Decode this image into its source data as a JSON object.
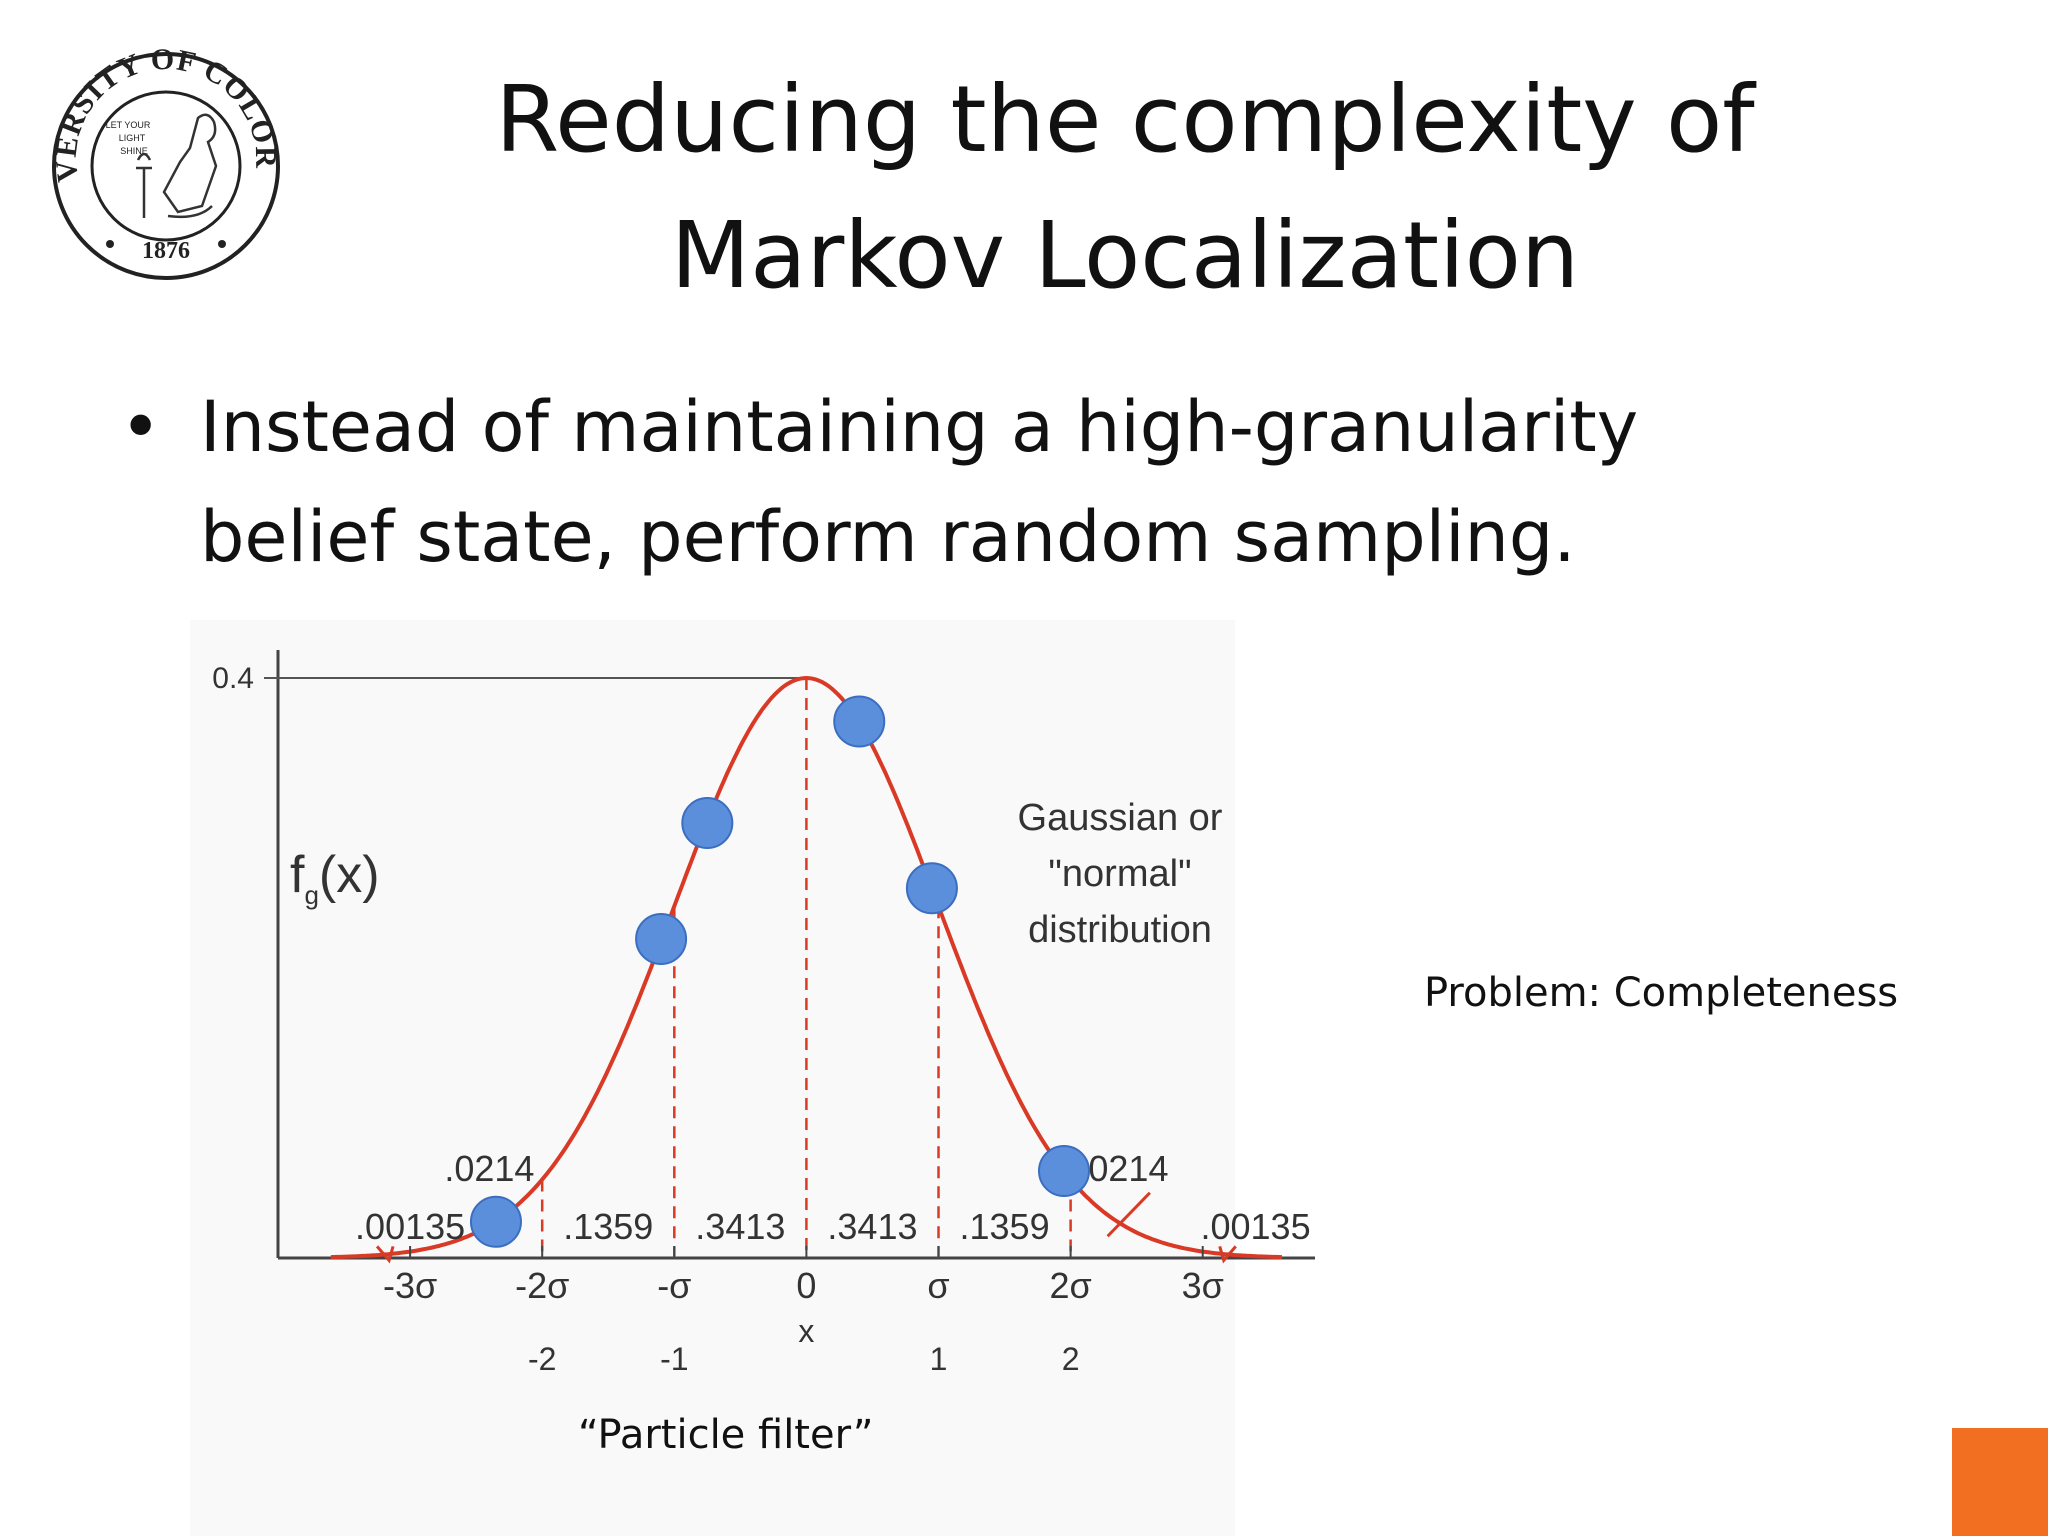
{
  "slide": {
    "title_lines": [
      "Reducing the complexity of",
      "Markov Localization"
    ],
    "bullet_marker": "•",
    "bullet_lines": [
      "Instead of maintaining a high-granularity",
      "belief state, perform random sampling."
    ],
    "problem": "Problem: Completeness",
    "caption": "“Particle filter”",
    "accent_color": "#f26f21"
  },
  "seal": {
    "ring_text": "UNIVERSITY OF COLORADO",
    "motto_lines": [
      "LET YOUR",
      "LIGHT",
      "SHINE"
    ],
    "year": "1876"
  },
  "chart_data": {
    "type": "line",
    "function_label": "f",
    "function_subscript": "g",
    "function_arg": "(x)",
    "xlabel": "x",
    "y_tick_label": "0.4",
    "xlim": [
      -4.0,
      3.85
    ],
    "ylim": [
      0,
      0.4
    ],
    "curve_color": "#d93a26",
    "point_color": "#5b8fdb",
    "sigma_ticks": [
      {
        "x": -3,
        "label": "-3σ"
      },
      {
        "x": -2,
        "label": "-2σ"
      },
      {
        "x": -1,
        "label": "-σ"
      },
      {
        "x": 0,
        "label": "0"
      },
      {
        "x": 1,
        "label": "σ"
      },
      {
        "x": 2,
        "label": "2σ"
      },
      {
        "x": 3,
        "label": "3σ"
      }
    ],
    "z_labels": [
      {
        "x": -2,
        "label": "-2"
      },
      {
        "x": -1,
        "label": "-1"
      },
      {
        "x": 1,
        "label": "1"
      },
      {
        "x": 2,
        "label": "2"
      }
    ],
    "dashed_lines_x": [
      -2,
      -1,
      0,
      1,
      2
    ],
    "area_labels": [
      {
        "x": -3.0,
        "y": 0.013,
        "label": ".00135"
      },
      {
        "x": -2.4,
        "y": 0.053,
        "label": ".0214"
      },
      {
        "x": -1.5,
        "y": 0.013,
        "label": ".1359"
      },
      {
        "x": -0.5,
        "y": 0.013,
        "label": ".3413"
      },
      {
        "x": 0.5,
        "y": 0.013,
        "label": ".3413"
      },
      {
        "x": 1.5,
        "y": 0.013,
        "label": ".1359"
      },
      {
        "x": 2.4,
        "y": 0.053,
        "label": ".0214"
      },
      {
        "x": 3.4,
        "y": 0.013,
        "label": ".00135"
      }
    ],
    "annotation_lines": [
      "Gaussian or",
      "\"normal\"",
      "distribution"
    ],
    "particles": [
      {
        "x": -2.35,
        "y": 0.025
      },
      {
        "x": -1.1,
        "y": 0.22
      },
      {
        "x": -0.75,
        "y": 0.3
      },
      {
        "x": 0.4,
        "y": 0.37
      },
      {
        "x": 0.95,
        "y": 0.255
      },
      {
        "x": 1.95,
        "y": 0.06
      }
    ]
  }
}
